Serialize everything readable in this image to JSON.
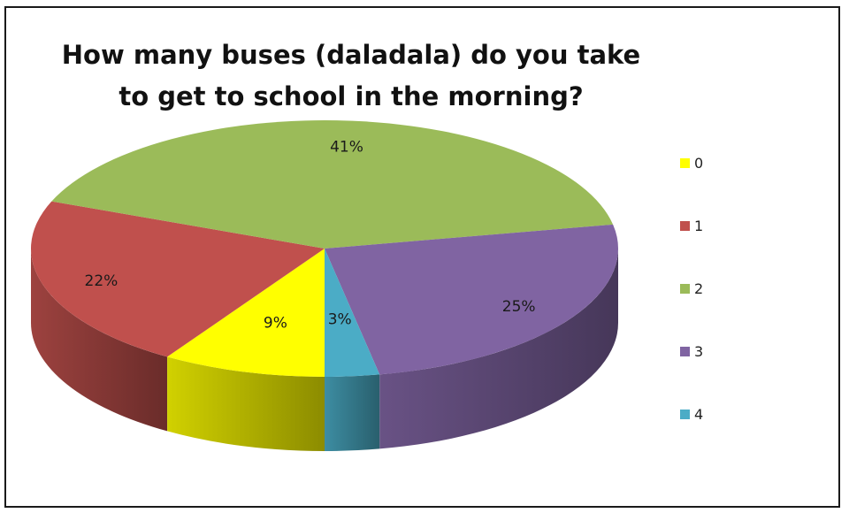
{
  "chart_data": {
    "type": "pie",
    "style": "3d",
    "title": "How many buses (daladala) do you take to get to school in the morning?",
    "categories": [
      "0",
      "1",
      "2",
      "3",
      "4"
    ],
    "values": [
      9,
      22,
      41,
      25,
      3
    ],
    "value_labels": [
      "9%",
      "22%",
      "41%",
      "25%",
      "3%"
    ],
    "unit": "%",
    "colors": [
      "#ffff00",
      "#c0504d",
      "#9bbb59",
      "#8064a2",
      "#4bacc6"
    ],
    "legend_position": "right"
  }
}
